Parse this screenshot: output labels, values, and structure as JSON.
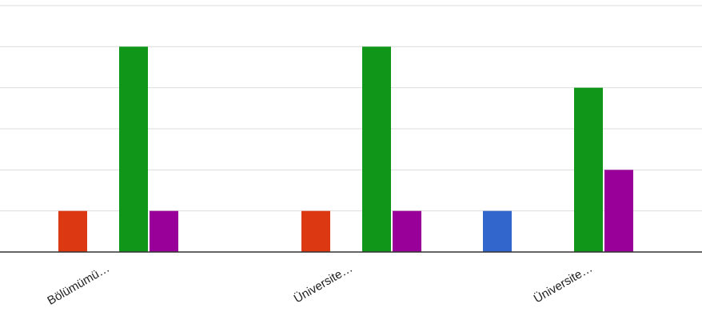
{
  "chart_data": {
    "type": "bar",
    "categories": [
      "Bölümümü…",
      "Üniversite…",
      "Üniversite…"
    ],
    "series": [
      {
        "values": [
          0,
          0,
          1
        ],
        "color": "#3366cc"
      },
      {
        "values": [
          1,
          1,
          0
        ],
        "color": "#dc3912"
      },
      {
        "values": [
          0,
          0,
          0
        ],
        "color": "#ff9900"
      },
      {
        "values": [
          5,
          5,
          4
        ],
        "color": "#109618"
      },
      {
        "values": [
          1,
          1,
          2
        ],
        "color": "#990099"
      }
    ],
    "ylim": [
      0,
      6
    ],
    "grid": true,
    "colors": {
      "grid": "#dddddd",
      "baseline": "#333333"
    }
  }
}
